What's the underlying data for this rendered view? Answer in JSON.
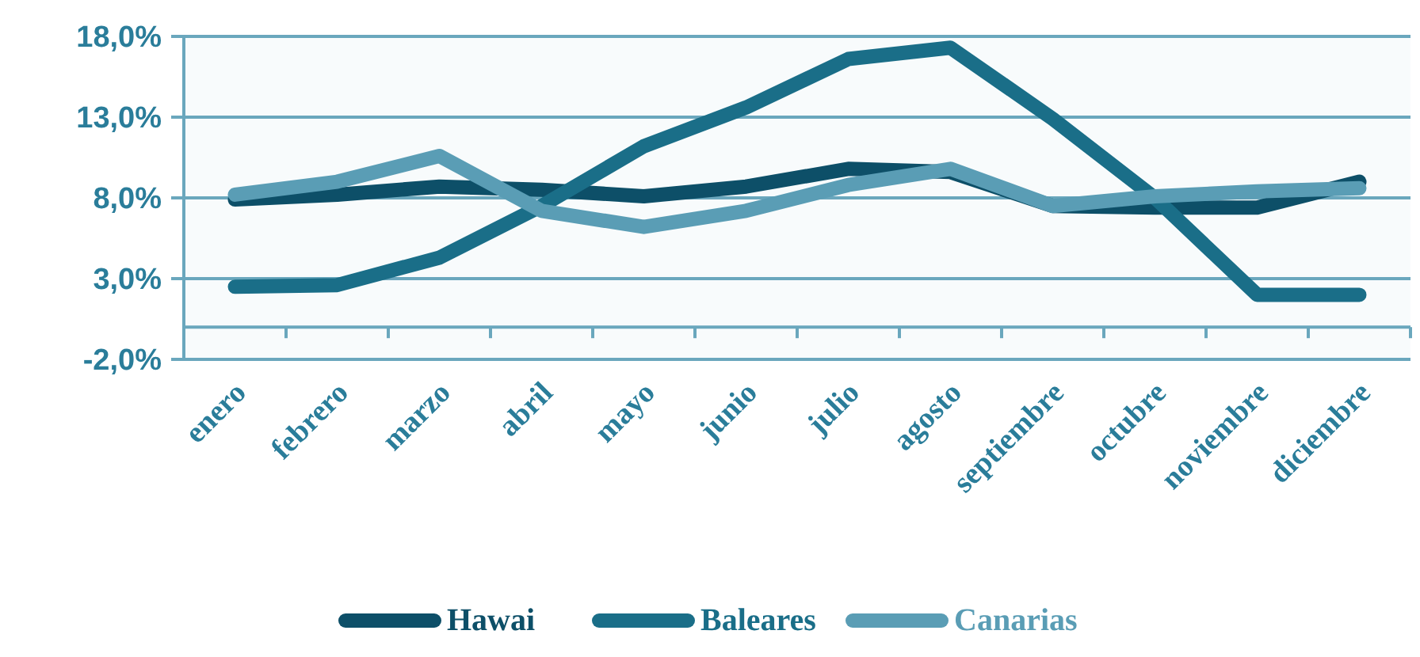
{
  "chart_data": {
    "type": "line",
    "categories": [
      "enero",
      "febrero",
      "marzo",
      "abril",
      "mayo",
      "junio",
      "julio",
      "agosto",
      "septiembre",
      "octubre",
      "noviembre",
      "diciembre"
    ],
    "series": [
      {
        "name": "Hawai",
        "color": "#0d4f68",
        "values": [
          7.9,
          8.2,
          8.7,
          8.5,
          8.1,
          8.7,
          9.8,
          9.6,
          7.5,
          7.4,
          7.4,
          9.0
        ]
      },
      {
        "name": "Baleares",
        "color": "#1a6e88",
        "values": [
          2.5,
          2.6,
          4.3,
          7.5,
          11.2,
          13.6,
          16.6,
          17.3,
          12.9,
          8.0,
          2.0,
          2.0
        ]
      },
      {
        "name": "Canarias",
        "color": "#5a9db5",
        "values": [
          8.2,
          9.0,
          10.6,
          7.2,
          6.2,
          7.2,
          8.8,
          9.8,
          7.5,
          8.1,
          8.4,
          8.6
        ]
      }
    ],
    "ylim": [
      -2,
      18
    ],
    "yticks": [
      {
        "value": -2,
        "label": "-2,0%"
      },
      {
        "value": 3,
        "label": "3,0%"
      },
      {
        "value": 8,
        "label": "8,0%"
      },
      {
        "value": 13,
        "label": "13,0%"
      },
      {
        "value": 18,
        "label": "18,0%"
      }
    ],
    "grid": "y",
    "legend": "bottom",
    "line_style": "solid"
  }
}
